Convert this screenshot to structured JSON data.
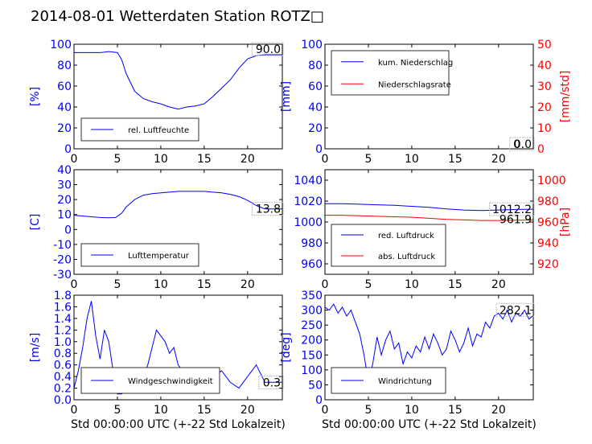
{
  "title": "2014-08-01 Wetterdaten Station ROTZ□",
  "colors": {
    "primary": "#0000ff",
    "secondary": "#ff0000",
    "axis": "#000000"
  },
  "chart_data": [
    {
      "id": "humidity",
      "type": "line",
      "xlim": [
        0,
        24
      ],
      "ylim": [
        0,
        100
      ],
      "xticks": [
        0,
        5,
        10,
        15,
        20
      ],
      "yticks": [
        0,
        20,
        40,
        60,
        80,
        100
      ],
      "ylabel": "[%]",
      "last_value": "90.0",
      "legend_pos": "lower-left",
      "series": [
        {
          "name": "rel. Luftfeuchte",
          "color": "#0000ff",
          "x": [
            0,
            1,
            2,
            3,
            4,
            5,
            5.5,
            6,
            7,
            8,
            9,
            10,
            11,
            12,
            13,
            14,
            15,
            16,
            17,
            18,
            19,
            20,
            21,
            22,
            23,
            24
          ],
          "y": [
            92,
            92,
            92,
            92,
            93,
            92,
            85,
            72,
            55,
            48,
            45,
            43,
            40,
            38,
            40,
            41,
            43,
            50,
            58,
            66,
            77,
            86,
            89,
            90,
            90,
            90
          ]
        }
      ]
    },
    {
      "id": "precipitation",
      "type": "line",
      "xlim": [
        0,
        24
      ],
      "ylim": [
        0,
        100
      ],
      "ylim_right": [
        0,
        50
      ],
      "xticks": [
        0,
        5,
        10,
        15,
        20
      ],
      "yticks": [
        0,
        20,
        40,
        60,
        80,
        100
      ],
      "yticks_right": [
        0,
        10,
        20,
        30,
        40,
        50
      ],
      "ylabel": "[mm]",
      "ylabel_right": "[mm/std]",
      "last_value": "0.0",
      "last_value_right": "0",
      "legend_pos": "top-left",
      "series": [
        {
          "name": "kum. Niederschlag",
          "color": "#0000ff",
          "axis": "left",
          "x": [
            0,
            24
          ],
          "y": [
            0,
            0
          ]
        },
        {
          "name": "Niederschlagsrate",
          "color": "#ff0000",
          "axis": "right",
          "x": [
            0,
            24
          ],
          "y": [
            0,
            0
          ]
        }
      ]
    },
    {
      "id": "temperature",
      "type": "line",
      "xlim": [
        0,
        24
      ],
      "ylim": [
        -30,
        40
      ],
      "xticks": [
        0,
        5,
        10,
        15,
        20
      ],
      "yticks": [
        -30,
        -20,
        -10,
        0,
        10,
        20,
        30,
        40
      ],
      "ylabel": "[C]",
      "last_value": "13.8",
      "legend_pos": "lower-left",
      "series": [
        {
          "name": "Lufttemperatur",
          "color": "#0000ff",
          "x": [
            0,
            1,
            2,
            3,
            4,
            4.8,
            5.5,
            6,
            7,
            8,
            9,
            10,
            11,
            12,
            13,
            14,
            15,
            16,
            17,
            18,
            19,
            20,
            21,
            22,
            23,
            24
          ],
          "y": [
            9.5,
            9,
            8.5,
            8,
            7.8,
            8,
            11,
            15,
            20,
            23,
            24,
            24.5,
            25,
            25.5,
            25.5,
            25.5,
            25.5,
            25,
            24.5,
            23.5,
            22,
            19.5,
            16,
            13.8,
            13.8,
            13.8
          ]
        }
      ]
    },
    {
      "id": "pressure",
      "type": "line",
      "xlim": [
        0,
        24
      ],
      "ylim": [
        950,
        1050
      ],
      "ylim_right": [
        910,
        1010
      ],
      "xticks": [
        0,
        5,
        10,
        15,
        20
      ],
      "yticks": [
        960,
        980,
        1000,
        1020,
        1040
      ],
      "yticks_right": [
        920,
        940,
        960,
        980,
        1000
      ],
      "ylabel_right": "[hPa]",
      "last_value": "1012.2",
      "last_value_right": "961.9",
      "legend_pos": "lower-left",
      "series": [
        {
          "name": "red. Luftdruck",
          "color": "#0000ff",
          "axis": "left",
          "x": [
            0,
            2,
            4,
            6,
            8,
            10,
            12,
            14,
            16,
            18,
            20,
            22,
            24
          ],
          "y": [
            1017.5,
            1017.5,
            1017,
            1016.5,
            1016,
            1015,
            1014,
            1012.5,
            1011.5,
            1011,
            1011.5,
            1012,
            1012.2
          ]
        },
        {
          "name": "abs. Luftdruck",
          "color": "#ff0000",
          "axis": "right",
          "x": [
            0,
            2,
            4,
            6,
            8,
            10,
            12,
            14,
            16,
            18,
            20,
            22,
            24
          ],
          "y": [
            966.5,
            966.5,
            966,
            965.5,
            965,
            964.5,
            963.5,
            962.5,
            962,
            961.5,
            961.5,
            961.8,
            961.9
          ]
        }
      ]
    },
    {
      "id": "windspeed",
      "type": "line",
      "xlim": [
        0,
        24
      ],
      "ylim": [
        0,
        1.8
      ],
      "xticks": [
        0,
        5,
        10,
        15,
        20
      ],
      "yticks": [
        0.0,
        0.2,
        0.4,
        0.6,
        0.8,
        1.0,
        1.2,
        1.4,
        1.6,
        1.8
      ],
      "ylabel": "[m/s]",
      "xlabel": "Std 00:00:00 UTC (+-22 Std Lokalzeit)",
      "last_value": "0.3",
      "legend_pos": "lower-center",
      "series": [
        {
          "name": "Windgeschwindigkeit",
          "color": "#0000ff",
          "x": [
            0,
            0.5,
            1,
            1.5,
            2,
            2.5,
            3,
            3.5,
            4,
            4.5,
            5,
            5.5,
            6,
            7,
            8,
            8.5,
            9,
            9.5,
            10,
            10.5,
            11,
            11.5,
            12,
            12.5,
            13,
            14,
            15,
            16,
            17,
            18,
            19,
            20,
            21,
            22,
            23,
            24
          ],
          "y": [
            0.2,
            0.5,
            0.9,
            1.4,
            1.7,
            1.1,
            0.7,
            1.2,
            1.0,
            0.5,
            0.1,
            0.1,
            0.2,
            0.3,
            0.4,
            0.6,
            0.9,
            1.2,
            1.1,
            1.0,
            0.8,
            0.9,
            0.6,
            0.5,
            0.4,
            0.3,
            0.4,
            0.4,
            0.5,
            0.3,
            0.2,
            0.4,
            0.6,
            0.3,
            0.3,
            0.3
          ]
        }
      ]
    },
    {
      "id": "winddirection",
      "type": "line",
      "xlim": [
        0,
        24
      ],
      "ylim": [
        0,
        350
      ],
      "xticks": [
        0,
        5,
        10,
        15,
        20
      ],
      "yticks": [
        0,
        50,
        100,
        150,
        200,
        250,
        300,
        350
      ],
      "ylabel": "[deg]",
      "xlabel": "Std 00:00:00 UTC (+-22 Std Lokalzeit)",
      "last_value": "282.1",
      "legend_pos": "lower-left",
      "series": [
        {
          "name": "Windrichtung",
          "color": "#0000ff",
          "x": [
            0,
            0.5,
            1,
            1.5,
            2,
            2.5,
            3,
            3.5,
            4,
            4.5,
            5,
            5.5,
            6,
            6.5,
            7,
            7.5,
            8,
            8.5,
            9,
            9.5,
            10,
            10.5,
            11,
            11.5,
            12,
            12.5,
            13,
            13.5,
            14,
            14.5,
            15,
            15.5,
            16,
            16.5,
            17,
            17.5,
            18,
            18.5,
            19,
            19.5,
            20,
            20.5,
            21,
            21.5,
            22,
            22.5,
            23,
            23.5,
            24
          ],
          "y": [
            310,
            300,
            320,
            290,
            310,
            280,
            300,
            260,
            220,
            150,
            60,
            120,
            210,
            150,
            200,
            230,
            170,
            190,
            120,
            160,
            140,
            180,
            160,
            210,
            170,
            220,
            190,
            150,
            170,
            230,
            200,
            160,
            190,
            240,
            180,
            220,
            210,
            260,
            240,
            280,
            290,
            270,
            300,
            260,
            290,
            280,
            300,
            270,
            282
          ]
        }
      ]
    }
  ]
}
